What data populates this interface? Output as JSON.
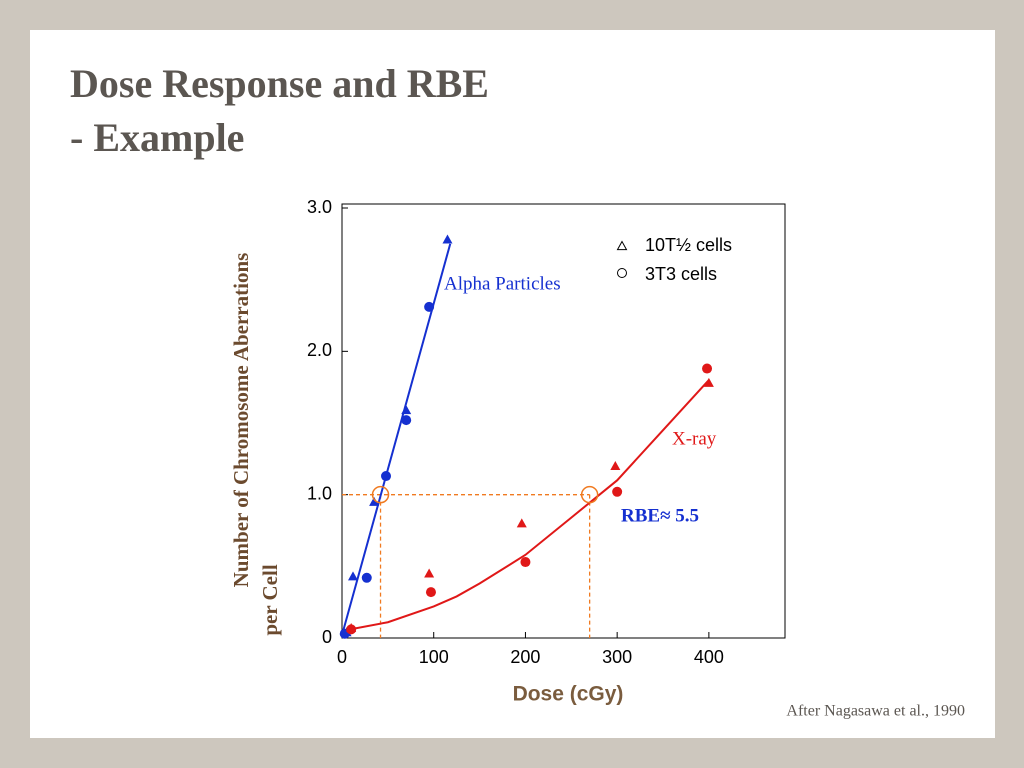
{
  "header": {
    "title_lines": [
      "Dose Response and RBE",
      "- Example"
    ]
  },
  "chart_data": {
    "type": "scatter",
    "x_label": "Dose (cGy)",
    "y_label_lines": [
      "Number of Chromosome Aberrations",
      "per Cell"
    ],
    "xlim": [
      0,
      483
    ],
    "ylim": [
      0,
      3.0
    ],
    "xticks": [
      0,
      100,
      200,
      300,
      400
    ],
    "yticks": [
      {
        "value": 0,
        "label": "0"
      },
      {
        "value": 1,
        "label": "1.0"
      },
      {
        "value": 2,
        "label": "2.0"
      },
      {
        "value": 3,
        "label": "3.0"
      }
    ],
    "legend": [
      {
        "label": "10T½ cells",
        "marker": "triangle"
      },
      {
        "label": "3T3 cells",
        "marker": "circle"
      }
    ],
    "series": [
      {
        "marker": "triangle",
        "color": "#1530d0",
        "x": [
          5,
          12,
          35,
          70,
          115
        ],
        "values": [
          0.04,
          0.43,
          0.95,
          1.59,
          2.78
        ]
      },
      {
        "marker": "circle",
        "color": "#1530d0",
        "x": [
          3,
          27,
          48,
          70,
          95
        ],
        "values": [
          0.03,
          0.42,
          1.13,
          1.52,
          2.31
        ]
      },
      {
        "marker": "triangle",
        "color": "#e01818",
        "x": [
          10,
          95,
          196,
          298,
          400
        ],
        "values": [
          0.07,
          0.45,
          0.8,
          1.2,
          1.78
        ]
      },
      {
        "marker": "circle",
        "color": "#e01818",
        "x": [
          10,
          97,
          200,
          300,
          398
        ],
        "values": [
          0.06,
          0.32,
          0.53,
          1.02,
          1.88
        ]
      }
    ],
    "lines": [
      {
        "label": "Alpha Particles",
        "color": "#1530d0",
        "x": [
          0,
          118
        ],
        "values": [
          0.02,
          2.75
        ]
      },
      {
        "label": "X-ray",
        "color": "#e01818",
        "x": [
          0,
          50,
          100,
          125,
          150,
          200,
          250,
          300,
          350,
          400
        ],
        "values": [
          0.05,
          0.11,
          0.22,
          0.29,
          0.38,
          0.58,
          0.84,
          1.1,
          1.45,
          1.8
        ]
      }
    ],
    "reference": {
      "label": "RBE≈ 5.5",
      "color": "#f07a20",
      "x": [
        42,
        270
      ],
      "y": 1.0
    },
    "source": "After Nagasawa et al., 1990"
  }
}
